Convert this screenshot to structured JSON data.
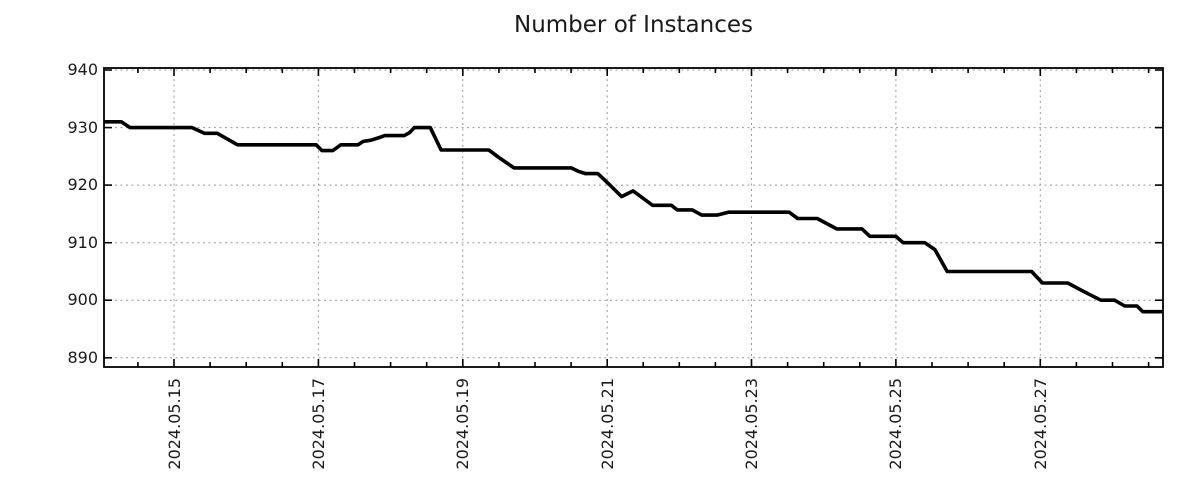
{
  "chart_data": {
    "type": "line",
    "title": "Number of Instances",
    "xlabel": "",
    "ylabel": "",
    "grid": "dotted",
    "legend": "none",
    "line_color": "#000000",
    "grid_color": "#999999",
    "x_unit": "date (2024.05.DD, fractional = time of day)",
    "x_domain_days": [
      14.03,
      28.7
    ],
    "y_domain": [
      888.4,
      940.35
    ],
    "y_ticks": [
      890,
      900,
      910,
      920,
      930,
      940
    ],
    "x_minor_tick_step_days": 0.5,
    "x_ticks_major": [
      {
        "day": 15,
        "label": "2024.05.15"
      },
      {
        "day": 17,
        "label": "2024.05.17"
      },
      {
        "day": 19,
        "label": "2024.05.19"
      },
      {
        "day": 21,
        "label": "2024.05.21"
      },
      {
        "day": 23,
        "label": "2024.05.23"
      },
      {
        "day": 25,
        "label": "2024.05.25"
      },
      {
        "day": 27,
        "label": "2024.05.27"
      }
    ],
    "series": [
      {
        "name": "number-of-instances",
        "points": [
          [
            14.03,
            931
          ],
          [
            14.27,
            931
          ],
          [
            14.39,
            930
          ],
          [
            15.25,
            930
          ],
          [
            15.42,
            929
          ],
          [
            15.6,
            929
          ],
          [
            15.88,
            927
          ],
          [
            16.97,
            927
          ],
          [
            17.05,
            926
          ],
          [
            17.2,
            926
          ],
          [
            17.31,
            927
          ],
          [
            17.55,
            927
          ],
          [
            17.62,
            927.6
          ],
          [
            17.73,
            927.8
          ],
          [
            17.83,
            928.2
          ],
          [
            17.92,
            928.6
          ],
          [
            18.19,
            928.6
          ],
          [
            18.26,
            929.1
          ],
          [
            18.33,
            930
          ],
          [
            18.55,
            930
          ],
          [
            18.7,
            926.1
          ],
          [
            19.36,
            926.1
          ],
          [
            19.5,
            924.8
          ],
          [
            19.71,
            923
          ],
          [
            20.5,
            923
          ],
          [
            20.6,
            922.4
          ],
          [
            20.7,
            922
          ],
          [
            20.87,
            922
          ],
          [
            21.04,
            920
          ],
          [
            21.2,
            918
          ],
          [
            21.36,
            919
          ],
          [
            21.63,
            916.5
          ],
          [
            21.89,
            916.5
          ],
          [
            21.97,
            915.7
          ],
          [
            22.18,
            915.7
          ],
          [
            22.31,
            914.8
          ],
          [
            22.52,
            914.8
          ],
          [
            22.68,
            915.3
          ],
          [
            23.52,
            915.3
          ],
          [
            23.64,
            914.2
          ],
          [
            23.91,
            914.2
          ],
          [
            24.18,
            912.4
          ],
          [
            24.53,
            912.4
          ],
          [
            24.64,
            911.1
          ],
          [
            25.0,
            911.1
          ],
          [
            25.1,
            910
          ],
          [
            25.4,
            910
          ],
          [
            25.54,
            908.8
          ],
          [
            25.71,
            905
          ],
          [
            26.88,
            905
          ],
          [
            27.03,
            903
          ],
          [
            27.38,
            903
          ],
          [
            27.62,
            901.4
          ],
          [
            27.84,
            900
          ],
          [
            28.03,
            900
          ],
          [
            28.17,
            899
          ],
          [
            28.34,
            899
          ],
          [
            28.42,
            898
          ],
          [
            28.7,
            898
          ]
        ]
      }
    ]
  }
}
